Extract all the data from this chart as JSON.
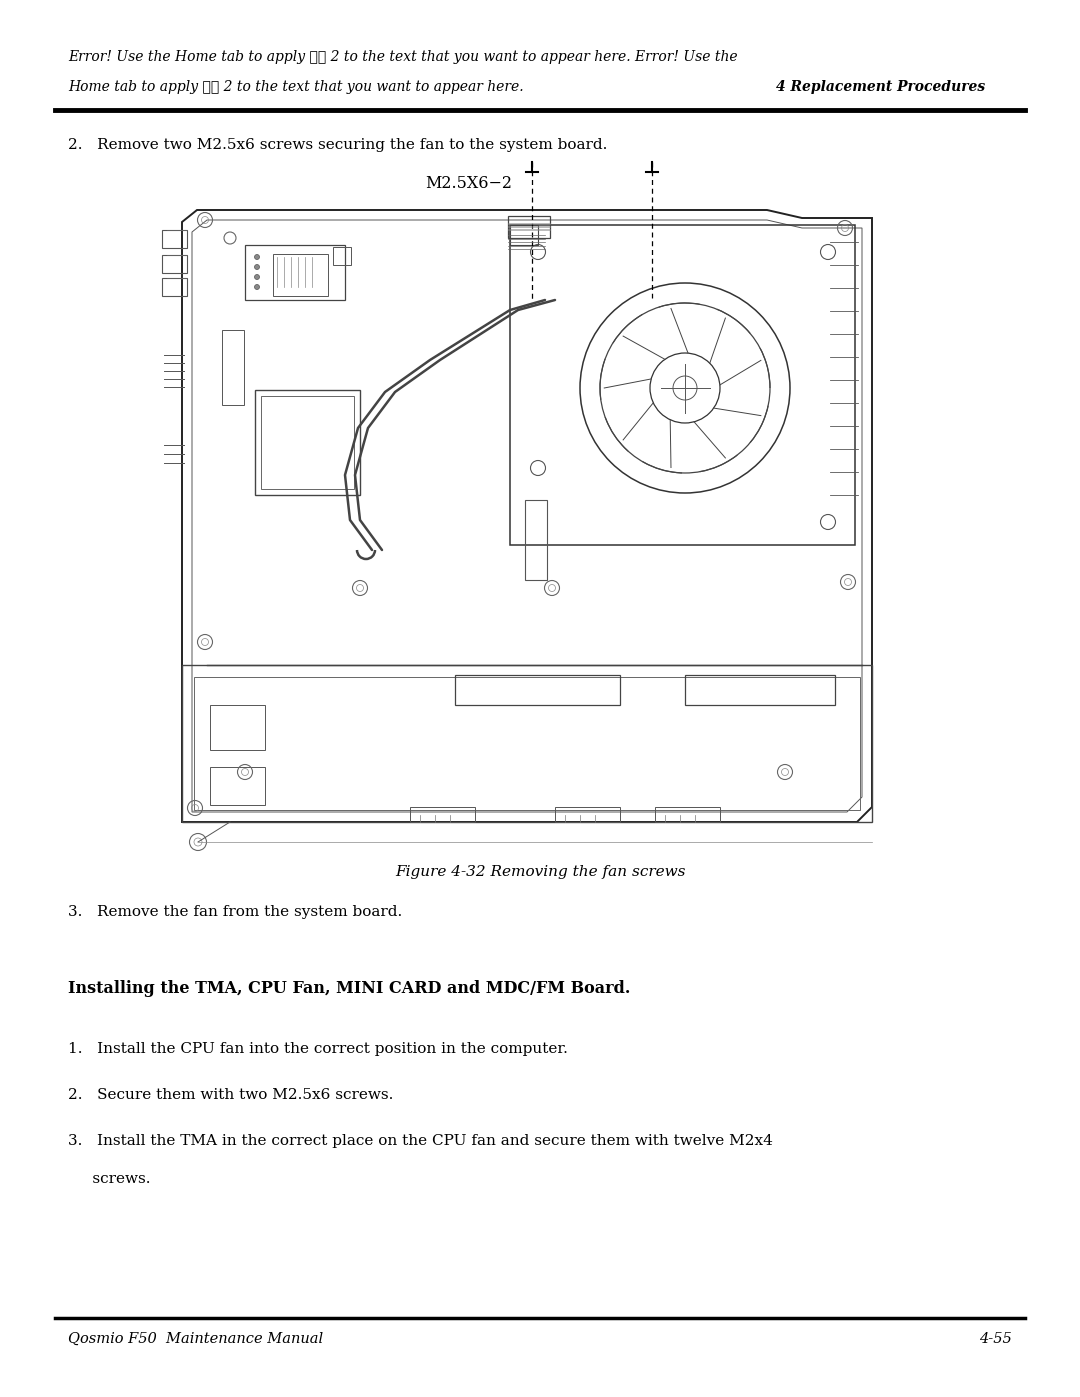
{
  "bg_color": "#ffffff",
  "page_width": 10.8,
  "page_height": 13.97,
  "header_line1": "Error! Use the Home tab to apply 標題 2 to the text that you want to appear here. Error! Use the",
  "header_line2_left": "Home tab to apply 標題 2 to the text that you want to appear here.",
  "header_line2_right": "4 Replacement Procedures",
  "footer_left": "Qosmio F50  Maintenance Manual",
  "footer_right": "4-55",
  "step2_text": "2.   Remove two M2.5x6 screws securing the fan to the system board.",
  "screw_label": "M2.5X6−2",
  "figure_caption": "Figure 4-32 Removing the fan screws",
  "step3_text": "3.   Remove the fan from the system board.",
  "section_heading": "Installing the TMA, CPU Fan, MINI CARD and MDC/FM Board.",
  "install_step1": "1.   Install the CPU fan into the correct position in the computer.",
  "install_step2": "2.   Secure them with two M2.5x6 screws.",
  "install_step3_line1": "3.   Install the TMA in the correct place on the CPU fan and secure them with twelve M2x4",
  "install_step3_line2": "     screws.",
  "header_italic_font_size": 10.0,
  "body_font_size": 11.0,
  "footer_font_size": 10.5,
  "section_font_size": 11.5,
  "screw_label_fontsize": 11.5,
  "caption_fontsize": 11.0
}
